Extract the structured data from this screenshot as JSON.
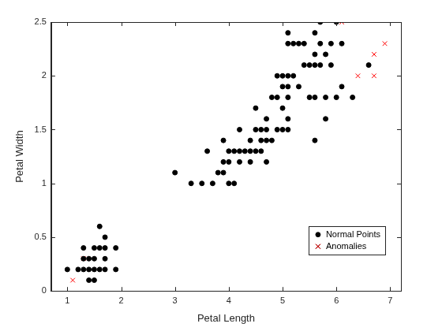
{
  "chart_data": {
    "type": "scatter",
    "x_label": "Petal Length",
    "y_label": "Petal Width",
    "xlim": [
      0.7,
      7.2
    ],
    "xticks": [
      1,
      2,
      3,
      4,
      5,
      6,
      7
    ],
    "ylim": [
      0,
      2.5
    ],
    "yticks": [
      0,
      0.5,
      1,
      1.5,
      2,
      2.5
    ],
    "grid": false,
    "legend": "lower right",
    "series": [
      {
        "name": "Normal Points",
        "color": "#000000",
        "marker": "circle",
        "x": [
          1.0,
          1.2,
          1.3,
          1.4,
          1.5,
          1.6,
          1.7,
          1.9,
          1.3,
          1.4,
          1.5,
          1.7,
          1.3,
          1.5,
          1.6,
          1.7,
          1.9,
          1.4,
          1.5,
          1.6,
          1.7,
          3.0,
          3.3,
          3.5,
          3.6,
          3.7,
          3.8,
          3.9,
          3.9,
          3.9,
          4.0,
          4.0,
          4.0,
          4.1,
          4.1,
          4.2,
          4.2,
          4.2,
          4.3,
          4.4,
          4.4,
          4.4,
          4.5,
          4.5,
          4.5,
          4.6,
          4.6,
          4.6,
          4.7,
          4.7,
          4.7,
          4.7,
          4.8,
          4.8,
          4.9,
          4.9,
          4.9,
          5.0,
          5.0,
          5.0,
          5.0,
          5.1,
          5.1,
          5.1,
          5.1,
          5.1,
          5.1,
          5.1,
          5.2,
          5.2,
          5.3,
          5.3,
          5.4,
          5.4,
          5.5,
          5.5,
          5.6,
          5.6,
          5.6,
          5.6,
          5.6,
          5.7,
          5.7,
          5.7,
          5.8,
          5.8,
          5.8,
          5.9,
          5.9,
          6.0,
          6.0,
          6.1,
          6.1,
          6.3,
          6.6
        ],
        "values": [
          0.2,
          0.2,
          0.2,
          0.2,
          0.2,
          0.2,
          0.2,
          0.2,
          0.3,
          0.3,
          0.3,
          0.3,
          0.4,
          0.4,
          0.4,
          0.4,
          0.4,
          0.1,
          0.1,
          0.6,
          0.5,
          1.1,
          1.0,
          1.0,
          1.3,
          1.0,
          1.1,
          1.1,
          1.2,
          1.4,
          1.0,
          1.2,
          1.3,
          1.0,
          1.3,
          1.2,
          1.3,
          1.5,
          1.3,
          1.2,
          1.3,
          1.4,
          1.3,
          1.5,
          1.7,
          1.3,
          1.4,
          1.5,
          1.2,
          1.4,
          1.5,
          1.6,
          1.4,
          1.8,
          1.5,
          1.8,
          2.0,
          1.5,
          1.7,
          1.9,
          2.0,
          1.5,
          1.6,
          1.8,
          1.9,
          2.0,
          2.3,
          2.4,
          2.0,
          2.3,
          1.9,
          2.3,
          2.1,
          2.3,
          1.8,
          2.1,
          1.4,
          1.8,
          2.1,
          2.2,
          2.4,
          2.1,
          2.3,
          2.5,
          1.6,
          1.8,
          2.2,
          2.1,
          2.3,
          1.8,
          2.5,
          1.9,
          2.3,
          1.8,
          2.1
        ]
      },
      {
        "name": "Anomalies",
        "color": "#ff0000",
        "marker": "x",
        "x": [
          1.1,
          1.3,
          6.1,
          6.4,
          6.7,
          6.7,
          6.9
        ],
        "values": [
          0.1,
          0.3,
          2.5,
          2.0,
          2.0,
          2.2,
          2.3
        ]
      }
    ]
  }
}
